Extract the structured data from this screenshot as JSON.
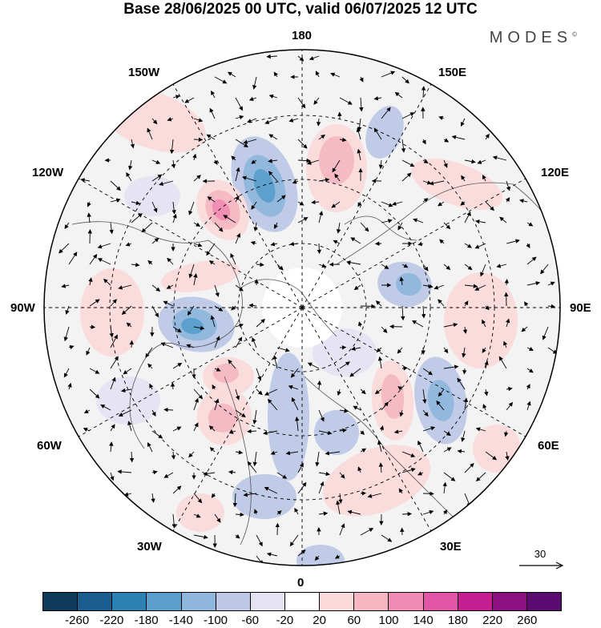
{
  "title": "Base 28/06/2025 00 UTC, valid 06/07/2025 12 UTC",
  "brand": "MODES",
  "brand_mark": "©",
  "longitude_labels": {
    "top": "180",
    "bottom": "0",
    "left": "90W",
    "right": "90E",
    "upper_left_1": "150W",
    "upper_left_2": "120W",
    "upper_right_1": "150E",
    "upper_right_2": "120E",
    "lower_left_1": "60W",
    "lower_left_2": "30W",
    "lower_right_1": "60E",
    "lower_right_2": "30E"
  },
  "reference_vector": "30",
  "colorbar": {
    "ticks": [
      "-260",
      "-220",
      "-180",
      "-140",
      "-100",
      "-60",
      "-20",
      "20",
      "60",
      "100",
      "140",
      "180",
      "220",
      "260"
    ],
    "colors": [
      "#0e3a5c",
      "#195e8e",
      "#2b80b4",
      "#5a9fcb",
      "#8fb6dc",
      "#bcc8e6",
      "#e5e3f2",
      "#ffffff",
      "#fadada",
      "#f6b7c2",
      "#f08cb3",
      "#e055a5",
      "#c41f92",
      "#8b1181",
      "#5a0b6f"
    ]
  },
  "legend_colors": {
    "land_gray": "#e6e6e6",
    "coast": "#555555",
    "grid": "#000000"
  }
}
